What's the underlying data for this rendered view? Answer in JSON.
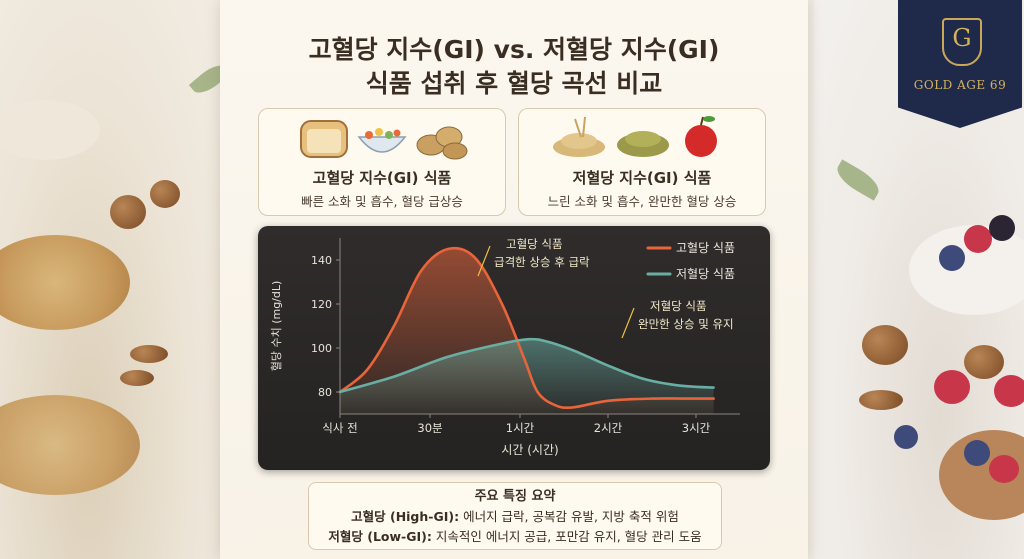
{
  "title_line1": "고혈당 지수(GI) vs. 저혈당 지수(GI)",
  "title_line2": "식품 섭취 후 혈당 곡선 비교",
  "cards": {
    "high": {
      "title": "고혈당 지수(GI) 식품",
      "desc": "빠른 소화 및 흡수, 혈당 급상승",
      "icons": [
        "bread-icon",
        "cereal-bowl-icon",
        "potato-icon"
      ]
    },
    "low": {
      "title": "저혈당 지수(GI) 식품",
      "desc": "느린 소화 및 흡수, 완만한 혈당 상승",
      "icons": [
        "oats-icon",
        "lentils-icon",
        "apple-icon"
      ]
    }
  },
  "chart_data": {
    "type": "line",
    "ylabel": "혈당 수치 (mg/dL)",
    "xlabel": "시간 (시간)",
    "x_ticks": [
      "식사 전",
      "30분",
      "1시간",
      "2시간",
      "3시간"
    ],
    "y_ticks": [
      80,
      100,
      120,
      140
    ],
    "ylim": [
      70,
      150
    ],
    "x_hours": [
      0,
      0.5,
      1,
      2,
      3
    ],
    "series": [
      {
        "name": "고혈당 식품",
        "color": "#e8643a",
        "x": [
          0,
          0.15,
          0.3,
          0.45,
          0.6,
          0.75,
          0.9,
          1.05,
          1.2,
          1.4,
          1.6,
          2.0,
          2.5,
          3.0,
          3.2
        ],
        "y": [
          80,
          90,
          110,
          135,
          145,
          141,
          120,
          95,
          80,
          74,
          73,
          76,
          77,
          77,
          77
        ]
      },
      {
        "name": "저혈당 식품",
        "color": "#6aaea3",
        "x": [
          0,
          0.3,
          0.6,
          0.9,
          1.1,
          1.3,
          1.6,
          2.0,
          2.4,
          2.8,
          3.2
        ],
        "y": [
          80,
          87,
          96,
          102,
          104,
          103,
          99,
          92,
          86,
          83,
          82
        ]
      }
    ],
    "annotations": [
      {
        "title": "고혈당 식품",
        "text": "급격한 상승 후 급락"
      },
      {
        "title": "저혈당 식품",
        "text": "완만한 상승 및 유지"
      }
    ],
    "legend": [
      "고혈당 식품",
      "저혈당 식품"
    ],
    "legend_position": "top-right"
  },
  "summary": {
    "heading": "주요 특징 요약",
    "high_label": "고혈당 (High-GI):",
    "high_text": "에너지 급락, 공복감 유발, 지방 축적 위험",
    "low_label": "저혈당 (Low-GI):",
    "low_text": "지속적인 에너지 공급, 포만감 유지, 혈당 관리 도움"
  },
  "badge": {
    "letter": "G",
    "text": "GOLD AGE 69"
  },
  "colors": {
    "high": "#e8643a",
    "low": "#6aaea3",
    "panel": "#2b2928",
    "gold": "#d4b25e",
    "navy": "#1f2a4a"
  }
}
